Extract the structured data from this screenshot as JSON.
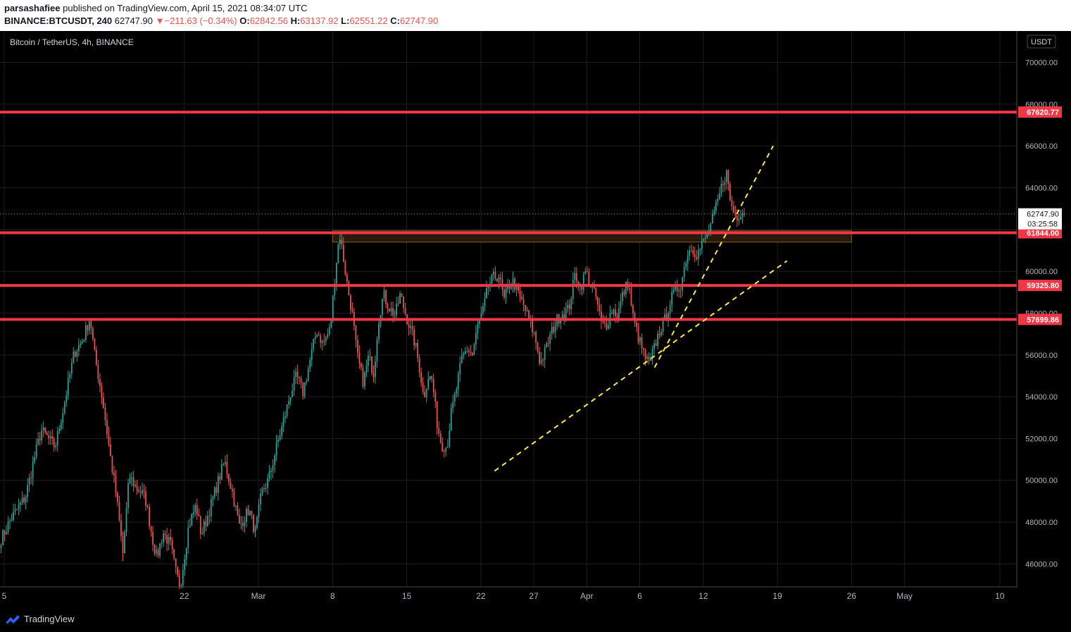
{
  "header": {
    "author": "parsashafiee",
    "published": "published on TradingView.com, April 15, 2021 08:34:07 UTC",
    "symbol_full": "BINANCE:BTCUSDT, 240",
    "last": "62747.90",
    "change": "−211.63 (−0.34%)",
    "open_label": "O:",
    "open": "62842.56",
    "high_label": "H:",
    "high": "63137.92",
    "low_label": "L:",
    "low": "62551.22",
    "close_label": "C:",
    "close": "62747.90"
  },
  "legend": {
    "title": "Bitcoin / TetherUS, 4h, BINANCE"
  },
  "price_axis": {
    "currency": "USDT",
    "countdown": "03:25:58"
  },
  "footer": {
    "brand": "TradingView"
  },
  "colors": {
    "up": "#26a69a",
    "down": "#ef5350",
    "level": "#f23645",
    "trend": "#ffeb3b",
    "zone_fill": "#2a1a0c",
    "zone_border": "#8a5a1c",
    "grid": "#1e1e1e"
  },
  "chart_data": {
    "type": "candlestick",
    "title": "Bitcoin / TetherUS, 4h, BINANCE",
    "x_ticks": [
      {
        "day": 15,
        "label": "5"
      },
      {
        "day": 32,
        "label": "22"
      },
      {
        "day": 39,
        "label": "Mar"
      },
      {
        "day": 46,
        "label": "8"
      },
      {
        "day": 53,
        "label": "15"
      },
      {
        "day": 60,
        "label": "22"
      },
      {
        "day": 65,
        "label": "27"
      },
      {
        "day": 70,
        "label": "Apr"
      },
      {
        "day": 75,
        "label": "6"
      },
      {
        "day": 81,
        "label": "12"
      },
      {
        "day": 88,
        "label": "19"
      },
      {
        "day": 95,
        "label": "26"
      },
      {
        "day": 100,
        "label": "May"
      },
      {
        "day": 109,
        "label": "10"
      }
    ],
    "x_range_days": [
      14.6,
      110.6
    ],
    "y_ticks": [
      46000,
      48000,
      50000,
      52000,
      54000,
      56000,
      58000,
      60000,
      62000,
      64000,
      66000,
      68000,
      70000
    ],
    "ylim": [
      44900,
      71500
    ],
    "horizontal_levels": [
      {
        "price": 67620.77,
        "label": "67620.77"
      },
      {
        "price": 61844.0,
        "label": "61844.00"
      },
      {
        "price": 59325.8,
        "label": "59325.80"
      },
      {
        "price": 57699.86,
        "label": "57699.86"
      }
    ],
    "current_price": {
      "price": 62747.9,
      "label": "62747.90"
    },
    "zone": {
      "day_start": 46.0,
      "day_end": 95.0,
      "price_low": 61400,
      "price_high": 61950
    },
    "trendlines": [
      {
        "from": {
          "day": 61.3,
          "price": 50450
        },
        "to": {
          "day": 88.9,
          "price": 60500
        }
      },
      {
        "from": {
          "day": 76.4,
          "price": 55400
        },
        "to": {
          "day": 87.6,
          "price": 66000
        }
      }
    ],
    "waypoints": [
      [
        14.7,
        47200
      ],
      [
        15.8,
        48300
      ],
      [
        17.0,
        49200
      ],
      [
        17.9,
        51200
      ],
      [
        18.5,
        52400
      ],
      [
        19.8,
        51600
      ],
      [
        20.6,
        53500
      ],
      [
        21.6,
        56100
      ],
      [
        22.4,
        56700
      ],
      [
        23.1,
        57800
      ],
      [
        23.5,
        56100
      ],
      [
        24.3,
        53800
      ],
      [
        25.0,
        51200
      ],
      [
        25.6,
        49200
      ],
      [
        26.2,
        46500
      ],
      [
        26.8,
        50200
      ],
      [
        27.4,
        49700
      ],
      [
        28.3,
        49200
      ],
      [
        29.0,
        47200
      ],
      [
        29.4,
        46300
      ],
      [
        30.0,
        47500
      ],
      [
        30.7,
        46900
      ],
      [
        31.2,
        45600
      ],
      [
        31.6,
        44900
      ],
      [
        32.4,
        47800
      ],
      [
        33.1,
        48800
      ],
      [
        33.6,
        47400
      ],
      [
        34.2,
        48300
      ],
      [
        35.1,
        49800
      ],
      [
        35.8,
        50900
      ],
      [
        36.6,
        49300
      ],
      [
        37.2,
        47800
      ],
      [
        38.1,
        48600
      ],
      [
        38.7,
        47500
      ],
      [
        39.3,
        49400
      ],
      [
        40.0,
        50100
      ],
      [
        40.7,
        51600
      ],
      [
        41.3,
        52700
      ],
      [
        42.0,
        54100
      ],
      [
        42.6,
        55000
      ],
      [
        43.2,
        54200
      ],
      [
        43.9,
        55800
      ],
      [
        44.5,
        57200
      ],
      [
        45.1,
        56500
      ],
      [
        45.8,
        57300
      ],
      [
        46.2,
        59700
      ],
      [
        46.5,
        61200
      ],
      [
        46.7,
        61700
      ],
      [
        47.0,
        60700
      ],
      [
        47.4,
        59300
      ],
      [
        47.9,
        57800
      ],
      [
        48.3,
        56000
      ],
      [
        48.9,
        54700
      ],
      [
        49.4,
        55900
      ],
      [
        49.9,
        55100
      ],
      [
        50.3,
        57600
      ],
      [
        50.8,
        58900
      ],
      [
        51.3,
        58300
      ],
      [
        51.9,
        57900
      ],
      [
        52.4,
        58900
      ],
      [
        52.8,
        58100
      ],
      [
        53.3,
        57300
      ],
      [
        53.8,
        56500
      ],
      [
        54.3,
        55100
      ],
      [
        54.6,
        53900
      ],
      [
        55.0,
        55000
      ],
      [
        55.4,
        54800
      ],
      [
        55.9,
        52600
      ],
      [
        56.3,
        51700
      ],
      [
        56.8,
        51600
      ],
      [
        57.2,
        53200
      ],
      [
        57.7,
        54400
      ],
      [
        58.2,
        55800
      ],
      [
        58.7,
        56300
      ],
      [
        59.2,
        56000
      ],
      [
        59.7,
        57400
      ],
      [
        60.2,
        58100
      ],
      [
        60.7,
        59300
      ],
      [
        61.2,
        59700
      ],
      [
        61.7,
        59800
      ],
      [
        62.2,
        58600
      ],
      [
        62.6,
        59300
      ],
      [
        63.1,
        59500
      ],
      [
        63.6,
        58800
      ],
      [
        64.1,
        58300
      ],
      [
        64.6,
        57600
      ],
      [
        65.1,
        56900
      ],
      [
        65.6,
        55600
      ],
      [
        66.1,
        56200
      ],
      [
        66.6,
        57000
      ],
      [
        67.2,
        57700
      ],
      [
        67.7,
        58000
      ],
      [
        68.3,
        58200
      ],
      [
        68.9,
        59900
      ],
      [
        69.4,
        59200
      ],
      [
        69.9,
        60000
      ],
      [
        70.4,
        59300
      ],
      [
        70.9,
        58700
      ],
      [
        71.4,
        57400
      ],
      [
        71.9,
        57500
      ],
      [
        72.4,
        58200
      ],
      [
        72.9,
        57900
      ],
      [
        73.4,
        58900
      ],
      [
        73.9,
        59500
      ],
      [
        74.4,
        57700
      ],
      [
        74.9,
        56800
      ],
      [
        75.4,
        56000
      ],
      [
        75.9,
        55500
      ],
      [
        76.4,
        56400
      ],
      [
        76.9,
        57200
      ],
      [
        77.4,
        57700
      ],
      [
        77.9,
        58600
      ],
      [
        78.4,
        59100
      ],
      [
        78.9,
        59400
      ],
      [
        79.4,
        60700
      ],
      [
        79.9,
        61200
      ],
      [
        80.4,
        60800
      ],
      [
        80.9,
        61300
      ],
      [
        81.4,
        61800
      ],
      [
        81.9,
        62500
      ],
      [
        82.4,
        63400
      ],
      [
        82.9,
        64400
      ],
      [
        83.2,
        64700
      ],
      [
        83.6,
        63200
      ],
      [
        84.1,
        62600
      ],
      [
        84.6,
        62900
      ],
      [
        85.0,
        62750
      ]
    ]
  }
}
